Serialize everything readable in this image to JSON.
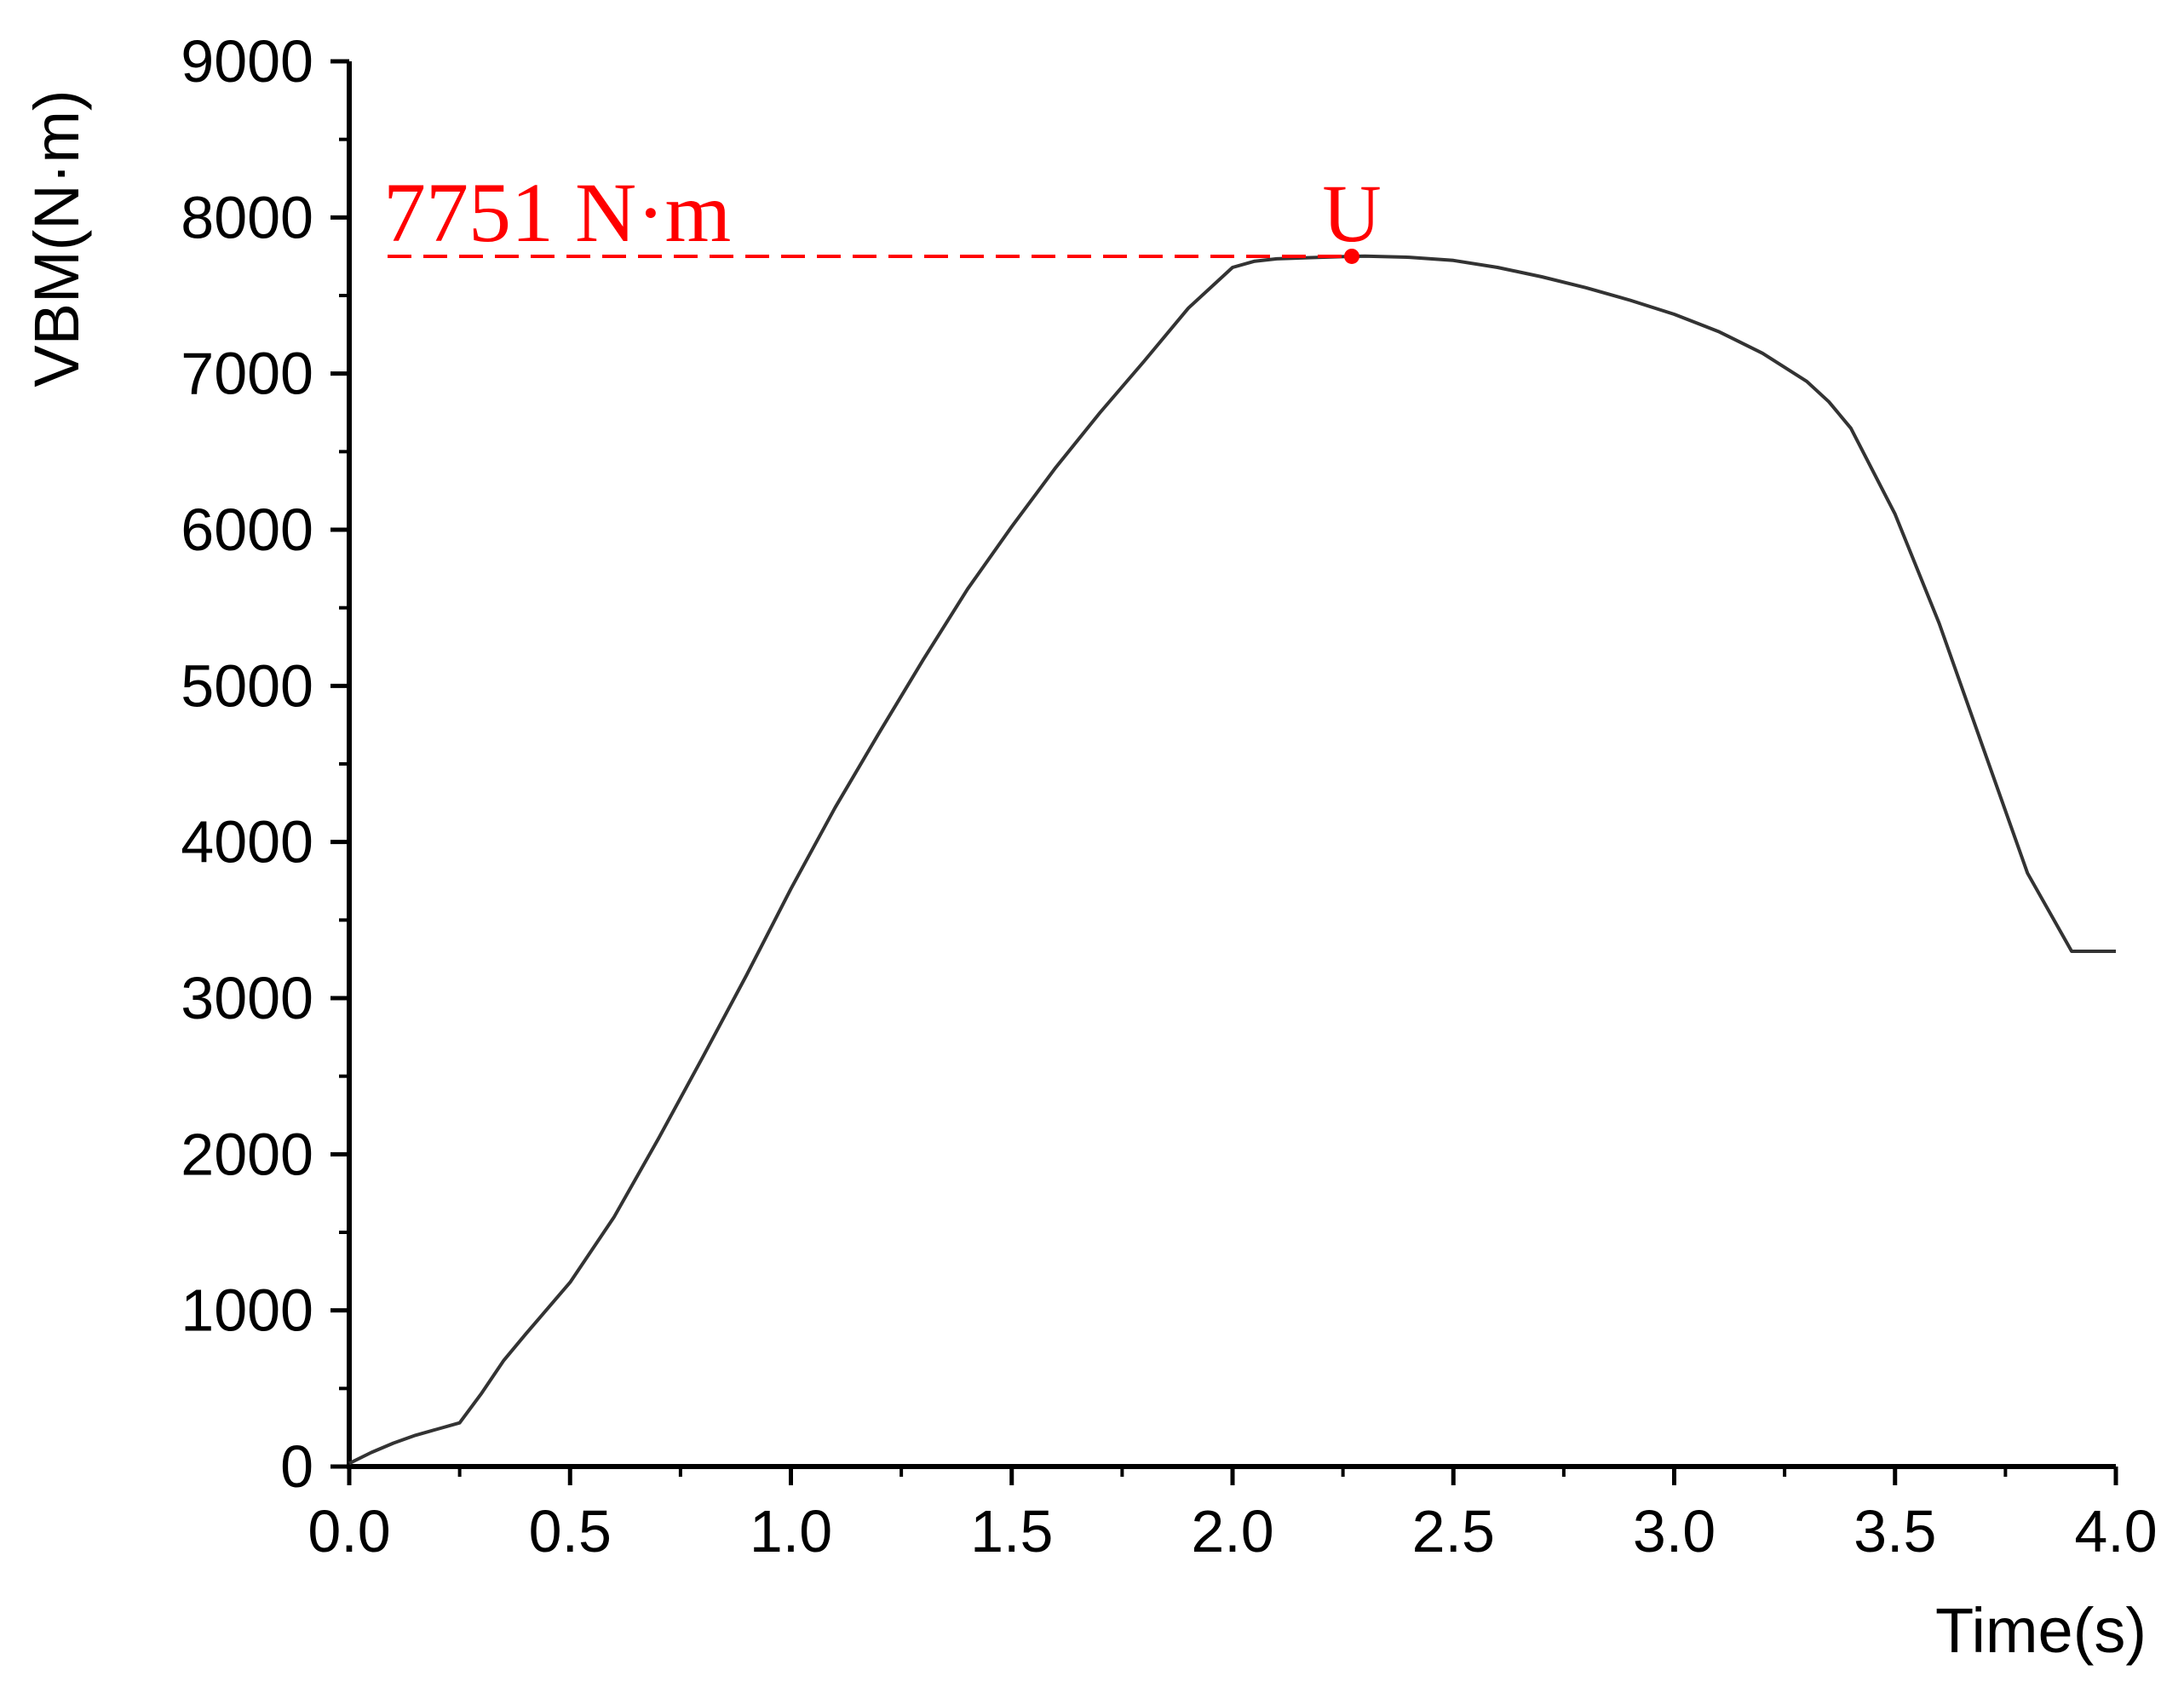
{
  "chart_data": {
    "type": "line",
    "xlabel": "Time(s)",
    "ylabel": "VBM(N·m)",
    "xlim": [
      0,
      4
    ],
    "ylim": [
      0,
      9000
    ],
    "x_ticks": [
      "0.0",
      "0.5",
      "1.0",
      "1.5",
      "2.0",
      "2.5",
      "3.0",
      "3.5",
      "4.0"
    ],
    "y_ticks": [
      "0",
      "1000",
      "2000",
      "3000",
      "4000",
      "5000",
      "6000",
      "7000",
      "8000",
      "9000"
    ],
    "grid": false,
    "line_color": "#333333",
    "series": [
      {
        "x": [
          0.0,
          0.05,
          0.1,
          0.15,
          0.2,
          0.25,
          0.3,
          0.35,
          0.4,
          0.5,
          0.6,
          0.7,
          0.8,
          0.9,
          1.0,
          1.1,
          1.2,
          1.3,
          1.4,
          1.5,
          1.6,
          1.7,
          1.8,
          1.9,
          2.0,
          2.05,
          2.1,
          2.2,
          2.27,
          2.3,
          2.4,
          2.5,
          2.6,
          2.7,
          2.8,
          2.9,
          3.0,
          3.1,
          3.2,
          3.3,
          3.35,
          3.4,
          3.5,
          3.6,
          3.7,
          3.8,
          3.9,
          4.0
        ],
        "y": [
          20,
          90,
          150,
          200,
          240,
          280,
          470,
          680,
          850,
          1180,
          1600,
          2100,
          2620,
          3150,
          3700,
          4220,
          4700,
          5170,
          5620,
          6020,
          6400,
          6750,
          7080,
          7420,
          7680,
          7720,
          7735,
          7745,
          7751,
          7752,
          7745,
          7725,
          7680,
          7620,
          7550,
          7470,
          7380,
          7270,
          7130,
          6950,
          6820,
          6650,
          6100,
          5400,
          4600,
          3800,
          3300,
          3300
        ]
      }
    ],
    "annotations": [
      {
        "text": "7751 N·m",
        "y": 7751,
        "color": "#ff0000",
        "style": "dashed-hline"
      },
      {
        "text": "U",
        "x": 2.27,
        "y": 7751,
        "color": "#ff0000",
        "style": "point"
      }
    ]
  }
}
